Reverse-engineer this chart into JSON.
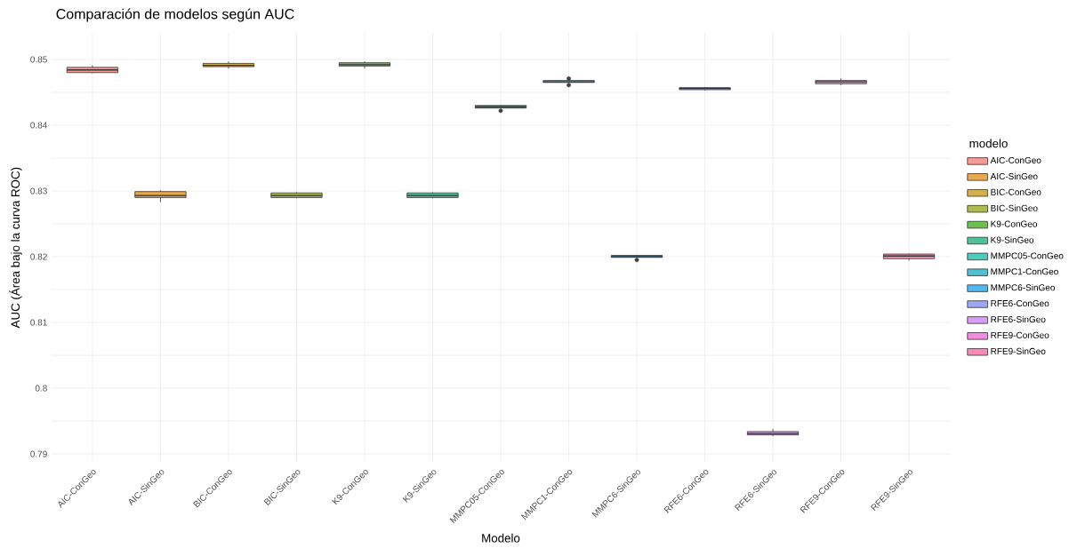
{
  "chart_data": {
    "type": "box",
    "title": "Comparación de modelos según AUC",
    "xlabel": "Modelo",
    "ylabel": "AUC (Área bajo la curva ROC)",
    "legend_title": "modelo",
    "legend": "right",
    "grid": true,
    "categories": [
      "AIC-ConGeo",
      "AIC-SinGeo",
      "BIC-ConGeo",
      "BIC-SinGeo",
      "K9-ConGeo",
      "K9-SinGeo",
      "MMPC05-ConGeo",
      "MMPC1-ConGeo",
      "MMPC6-SinGeo",
      "RFE6-ConGeo",
      "RFE6-SinGeo",
      "RFE9-ConGeo",
      "RFE9-SinGeo"
    ],
    "series": [
      {
        "name": "AIC-ConGeo",
        "color": "#f79a94",
        "boxes": [
          {
            "low": 0.8479,
            "q1": 0.848,
            "median": 0.8484,
            "q3": 0.8488,
            "high": 0.8491
          },
          null,
          null,
          null,
          null,
          null,
          null,
          null,
          null,
          null,
          null,
          null,
          null
        ]
      },
      {
        "name": "AIC-SinGeo",
        "color": "#e9a94d",
        "boxes": [
          null,
          {
            "low": 0.8283,
            "q1": 0.829,
            "median": 0.8293,
            "q3": 0.8299,
            "high": 0.8301
          },
          null,
          null,
          null,
          null,
          null,
          null,
          null,
          null,
          null,
          null,
          null
        ]
      },
      {
        "name": "BIC-ConGeo",
        "color": "#d2b14d",
        "boxes": [
          null,
          null,
          {
            "low": 0.8486,
            "q1": 0.8489,
            "median": 0.8491,
            "q3": 0.8494,
            "high": 0.8497
          },
          null,
          null,
          null,
          null,
          null,
          null,
          null,
          null,
          null,
          null
        ]
      },
      {
        "name": "BIC-SinGeo",
        "color": "#aeba4e",
        "boxes": [
          null,
          null,
          null,
          {
            "low": 0.8289,
            "q1": 0.829,
            "median": 0.8293,
            "q3": 0.8297,
            "high": 0.8298
          },
          null,
          null,
          null,
          null,
          null,
          null,
          null,
          null,
          null
        ]
      },
      {
        "name": "K9-ConGeo",
        "color": "#6cc04e",
        "boxes": [
          null,
          null,
          null,
          null,
          {
            "low": 0.8486,
            "q1": 0.849,
            "median": 0.8492,
            "q3": 0.8495,
            "high": 0.8497
          },
          null,
          null,
          null,
          null,
          null,
          null,
          null,
          null
        ]
      },
      {
        "name": "K9-SinGeo",
        "color": "#4cc39a",
        "boxes": [
          null,
          null,
          null,
          null,
          null,
          {
            "low": 0.8289,
            "q1": 0.829,
            "median": 0.8293,
            "q3": 0.8297,
            "high": 0.8298
          },
          null,
          null,
          null,
          null,
          null,
          null,
          null
        ]
      },
      {
        "name": "MMPC05-ConGeo",
        "color": "#4cccbb",
        "boxes": [
          null,
          null,
          null,
          null,
          null,
          null,
          {
            "low": 0.8426,
            "q1": 0.8426,
            "median": 0.8428,
            "q3": 0.843,
            "high": 0.8431,
            "outliers": [
              0.8422
            ]
          },
          null,
          null,
          null,
          null,
          null,
          null
        ]
      },
      {
        "name": "MMPC1-ConGeo",
        "color": "#4cc3d3",
        "boxes": [
          null,
          null,
          null,
          null,
          null,
          null,
          null,
          {
            "low": 0.8465,
            "q1": 0.8465,
            "median": 0.8466,
            "q3": 0.8468,
            "high": 0.8468,
            "outliers": [
              0.8471,
              0.8461
            ]
          },
          null,
          null,
          null,
          null,
          null
        ]
      },
      {
        "name": "MMPC6-SinGeo",
        "color": "#4cb9f2",
        "boxes": [
          null,
          null,
          null,
          null,
          null,
          null,
          null,
          null,
          {
            "low": 0.8199,
            "q1": 0.8199,
            "median": 0.82,
            "q3": 0.8202,
            "high": 0.8202,
            "outliers": [
              0.8195
            ]
          },
          null,
          null,
          null,
          null
        ]
      },
      {
        "name": "RFE6-ConGeo",
        "color": "#9ea7f7",
        "boxes": [
          null,
          null,
          null,
          null,
          null,
          null,
          null,
          null,
          null,
          {
            "low": 0.8453,
            "q1": 0.8454,
            "median": 0.8456,
            "q3": 0.8457,
            "high": 0.8458
          },
          null,
          null,
          null
        ]
      },
      {
        "name": "RFE6-SinGeo",
        "color": "#d99df5",
        "boxes": [
          null,
          null,
          null,
          null,
          null,
          null,
          null,
          null,
          null,
          null,
          {
            "low": 0.7927,
            "q1": 0.7929,
            "median": 0.7931,
            "q3": 0.7934,
            "high": 0.7938
          },
          null,
          null
        ]
      },
      {
        "name": "RFE9-ConGeo",
        "color": "#f58ae3",
        "boxes": [
          null,
          null,
          null,
          null,
          null,
          null,
          null,
          null,
          null,
          null,
          null,
          {
            "low": 0.8461,
            "q1": 0.8463,
            "median": 0.8466,
            "q3": 0.8468,
            "high": 0.8471
          },
          null
        ]
      },
      {
        "name": "RFE9-SinGeo",
        "color": "#f88ab7",
        "boxes": [
          null,
          null,
          null,
          null,
          null,
          null,
          null,
          null,
          null,
          null,
          null,
          null,
          {
            "low": 0.8194,
            "q1": 0.8197,
            "median": 0.8201,
            "q3": 0.8204,
            "high": 0.8205
          }
        ]
      }
    ],
    "ylim": [
      0.7888,
      0.854
    ],
    "yticks": [
      0.79,
      {
        "value": 0.795,
        "label": null
      },
      0.8,
      {
        "value": 0.805,
        "label": null
      },
      0.81,
      {
        "value": 0.815,
        "label": null
      },
      0.82,
      {
        "value": 0.825,
        "label": null
      },
      0.83,
      {
        "value": 0.835,
        "label": null
      },
      0.84,
      {
        "value": 0.845,
        "label": null
      },
      0.85
    ]
  }
}
